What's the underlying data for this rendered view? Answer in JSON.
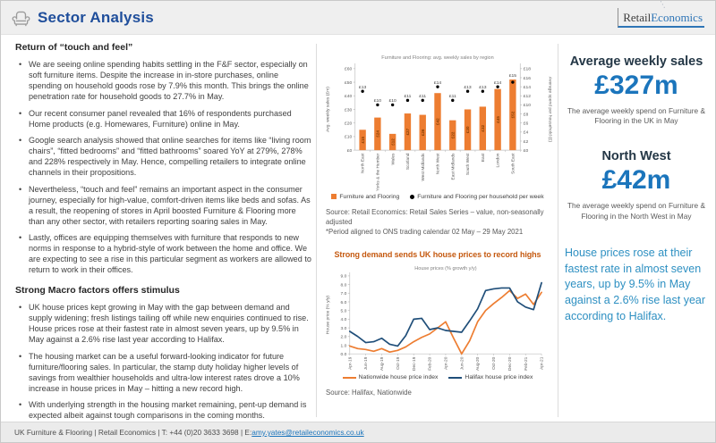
{
  "header": {
    "title": "Sector Analysis",
    "logo_part1": "Retail",
    "logo_part2": "Economics"
  },
  "colors": {
    "title_blue": "#1F4E9B",
    "stat_blue": "#1B75BC",
    "highlight_teal": "#2E90C2",
    "chart_heading_orange": "#C55A11",
    "bar_orange": "#ED7D31",
    "halifax_navy": "#1F4E79"
  },
  "left": {
    "section1": {
      "heading": "Return of “touch and feel”",
      "bullets": [
        "We are seeing online spending habits settling in the F&F sector, especially on soft furniture items. Despite the increase in in-store purchases, online spending on household goods rose by 7.9% this month. This brings the online penetration rate for household goods to 27.7% in May.",
        "Our recent consumer panel revealed that 16% of respondents purchased Home products (e.g. Homewares, Furniture) online in May.",
        "Google search analysis showed that online searches for items like “living room chairs”, “fitted bedrooms” and “fitted bathrooms” soared YoY at 279%, 278% and 228% respectively in May. Hence, compelling retailers to integrate online channels in their propositions.",
        "Nevertheless, “touch and feel” remains an important aspect in the consumer journey, especially for high-value, comfort-driven items like beds and sofas. As a result, the reopening of stores in April boosted Furniture & Flooring more than any other sector, with retailers reporting soaring sales in May.",
        "Lastly, offices are equipping themselves with furniture that responds to new norms in response to a hybrid-style of work between the home and office. We are expecting to see a rise in this particular segment as workers are allowed to return to work in their offices."
      ]
    },
    "section2": {
      "heading": "Strong Macro factors offers stimulus",
      "bullets": [
        "UK house prices kept growing in May with the gap between demand and supply widening; fresh listings tailing off while new enquiries continued to rise. House prices rose at their fastest rate in almost seven years, up by 9.5% in May against a 2.6% rise last year according to Halifax.",
        "The housing market can be a useful forward-looking indicator for future furniture/flooring sales. In particular, the stamp duty holiday higher levels of savings from wealthier households and ultra-low interest rates drove a 10% increase in house prices in May – hitting a new record high.",
        "With underlying strength in the housing market remaining, pent-up demand is expected albeit against tough comparisons in the coming months."
      ]
    }
  },
  "middle": {
    "bar_source_line1": "Source: Retail Economics: Retail Sales Series – value, non-seasonally adjusted",
    "bar_source_line2": "*Period aligned to ONS trading calendar 02 May – 29 May 2021",
    "line_chart_heading": "Strong demand sends UK house prices to record highs",
    "line_source": "Source: Halifax, Nationwide"
  },
  "right": {
    "stat1": {
      "heading": "Average weekly sales",
      "value": "£327m",
      "caption": "The average weekly spend on Furniture & Flooring in the UK in May"
    },
    "stat2": {
      "heading": "North West",
      "value": "£42m",
      "caption": "The average weekly spend on Furniture & Flooring in the North West in May"
    },
    "highlight": "House prices rose at their fastest rate in almost seven years, up by 9.5% in May against a 2.6% rise last year according to Halifax."
  },
  "footer": {
    "text": "UK Furniture & Flooring | Retail Economics | T: +44 (0)20 3633 3698 | E: ",
    "email": "amy.yates@retaileconomics.co.uk"
  },
  "chart_data": [
    {
      "type": "bar",
      "title": "Furniture and Flooring: avg. weekly sales by region",
      "categories": [
        "North East",
        "Yorks & the Humber",
        "Wales",
        "Scotland",
        "West Midlands",
        "North West",
        "East Midlands",
        "South West",
        "East",
        "London",
        "South East"
      ],
      "series": [
        {
          "name": "Furniture and Flooring",
          "kind": "bar",
          "axis": "left",
          "color": "#ED7D31",
          "values": [
            15,
            24,
            12,
            27,
            26,
            42,
            22,
            30,
            32,
            45,
            52
          ]
        },
        {
          "name": "Furniture and Flooring per household per week",
          "kind": "point",
          "axis": "right",
          "color": "#000000",
          "values": [
            13,
            10,
            10,
            11,
            11,
            14,
            11,
            13,
            13,
            14,
            15
          ]
        }
      ],
      "ylabel_left": "Avg. weekly sales (£m)",
      "ylabel_right": "Average spend per household (£)",
      "ylim_left": [
        0,
        60
      ],
      "ytick_left": 10,
      "ylim_right": [
        0,
        18
      ],
      "ytick_right": 2,
      "grid": false,
      "legend_position": "bottom"
    },
    {
      "type": "line",
      "title": "House prices (% growth y/y)",
      "x": [
        "Apr-19",
        "May-19",
        "Jun-19",
        "Jul-19",
        "Aug-19",
        "Sep-19",
        "Oct-19",
        "Nov-19",
        "Dec-19",
        "Jan-20",
        "Feb-20",
        "Mar-20",
        "Apr-20",
        "May-20",
        "Jun-20",
        "Jul-20",
        "Aug-20",
        "Sep-20",
        "Oct-20",
        "Nov-20",
        "Dec-20",
        "Jan-21",
        "Feb-21",
        "Mar-21",
        "Apr-21"
      ],
      "xtick_every": 2,
      "series": [
        {
          "name": "Nationwide house price index",
          "color": "#ED7D31",
          "values": [
            0.9,
            0.6,
            0.5,
            0.3,
            0.6,
            0.2,
            0.4,
            0.8,
            1.4,
            1.9,
            2.3,
            3.0,
            3.7,
            1.8,
            0.0,
            1.5,
            3.7,
            5.0,
            5.8,
            6.5,
            7.3,
            6.4,
            6.9,
            5.7,
            7.1
          ]
        },
        {
          "name": "Halifax house price index",
          "color": "#1F4E79",
          "values": [
            2.6,
            2.0,
            1.3,
            1.4,
            1.8,
            1.1,
            0.9,
            2.1,
            4.0,
            4.1,
            2.8,
            3.0,
            2.7,
            2.6,
            2.5,
            3.8,
            5.2,
            7.3,
            7.5,
            7.6,
            7.6,
            6.0,
            5.4,
            5.1,
            8.2
          ]
        }
      ],
      "ylabel": "House price (% y/y)",
      "ylim": [
        0,
        9
      ],
      "ytick": 1,
      "grid": false,
      "legend_position": "bottom"
    }
  ]
}
